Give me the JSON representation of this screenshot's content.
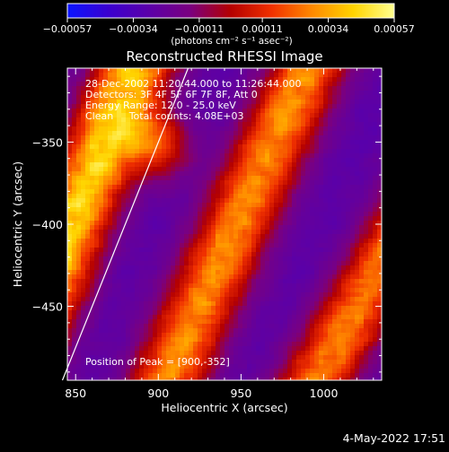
{
  "chart_data": {
    "type": "heatmap",
    "title": "Reconstructed RHESSI Image",
    "xlabel": "Heliocentric X (arcsec)",
    "ylabel": "Heliocentric Y (arcsec)",
    "xlim": [
      845,
      1035
    ],
    "ylim": [
      -495,
      -305
    ],
    "xticks": [
      850,
      900,
      950,
      1000
    ],
    "yticks": [
      -350,
      -400,
      -450
    ],
    "xtick_labels": [
      "850",
      "900",
      "950",
      "1000"
    ],
    "ytick_labels": [
      "−350",
      "−400",
      "−450"
    ],
    "colorbar": {
      "range": [
        -0.00057,
        0.00057
      ],
      "ticks": [
        -0.00057,
        -0.00034,
        -0.00011,
        0.00011,
        0.00034,
        0.00057
      ],
      "tick_labels": [
        "−0.00057",
        "−0.00034",
        "−0.00011",
        "0.00011",
        "0.00034",
        "0.00057"
      ],
      "unit_label": "(photons cm⁻² s⁻¹ asec⁻²)",
      "colormap": [
        "#0a14ff",
        "#3a00d0",
        "#5b00a8",
        "#7a0080",
        "#b40000",
        "#f03000",
        "#ff8a00",
        "#ffd400",
        "#ffff90"
      ]
    },
    "annotations": {
      "time": "28-Dec-2002 11:20:44.000 to 11:26:44.000",
      "detectors": "Detectors: 3F 4F 5F 6F 7F 8F, Att 0",
      "energy": "Energy Range: 12.0 - 25.0 keV",
      "clean": "Clean     Total counts: 4.08E+03",
      "peak": "Position of Peak = [900,-352]"
    },
    "peak": [
      900,
      -352
    ],
    "bands": [
      {
        "x_at_top": 885,
        "x_at_bottom": 810,
        "level": 0.62
      },
      {
        "x_at_top": 990,
        "x_at_bottom": 905,
        "level": 0.5
      },
      {
        "x_at_top": 1105,
        "x_at_bottom": 995,
        "level": 0.48
      }
    ],
    "limb_line": {
      "x": [
        893,
        918,
        842,
        868
      ],
      "y": [
        -305,
        -305,
        -495,
        -495
      ]
    }
  },
  "footer": {
    "date": "4-May-2022 17:51"
  }
}
